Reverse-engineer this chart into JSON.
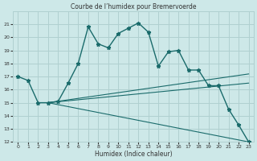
{
  "title": "Courbe de l’humidex pour Bremervoerde",
  "xlabel": "Humidex (Indice chaleur)",
  "xlim": [
    -0.5,
    23.5
  ],
  "ylim": [
    12,
    22
  ],
  "yticks": [
    12,
    13,
    14,
    15,
    16,
    17,
    18,
    19,
    20,
    21
  ],
  "xticks": [
    0,
    1,
    2,
    3,
    4,
    5,
    6,
    7,
    8,
    9,
    10,
    11,
    12,
    13,
    14,
    15,
    16,
    17,
    18,
    19,
    20,
    21,
    22,
    23
  ],
  "background_color": "#cde8e8",
  "grid_color": "#b0d0d0",
  "line_color": "#1a6b6b",
  "main_line": {
    "x": [
      0,
      1,
      2,
      3,
      4,
      5,
      6,
      7,
      8,
      9,
      10,
      11,
      12,
      13,
      14,
      15,
      16,
      17,
      18,
      19,
      20,
      21,
      22,
      23
    ],
    "y": [
      17.0,
      16.7,
      15.0,
      15.0,
      15.1,
      16.5,
      18.0,
      20.8,
      19.5,
      19.2,
      20.3,
      20.7,
      21.1,
      20.4,
      17.8,
      18.9,
      19.0,
      17.5,
      17.5,
      16.3,
      16.3,
      14.5,
      13.3,
      12.0
    ]
  },
  "fan_lines": [
    {
      "x": [
        3,
        23
      ],
      "y": [
        15.0,
        12.0
      ]
    },
    {
      "x": [
        3,
        23
      ],
      "y": [
        15.0,
        16.5
      ]
    },
    {
      "x": [
        3,
        23
      ],
      "y": [
        15.0,
        17.2
      ]
    }
  ]
}
